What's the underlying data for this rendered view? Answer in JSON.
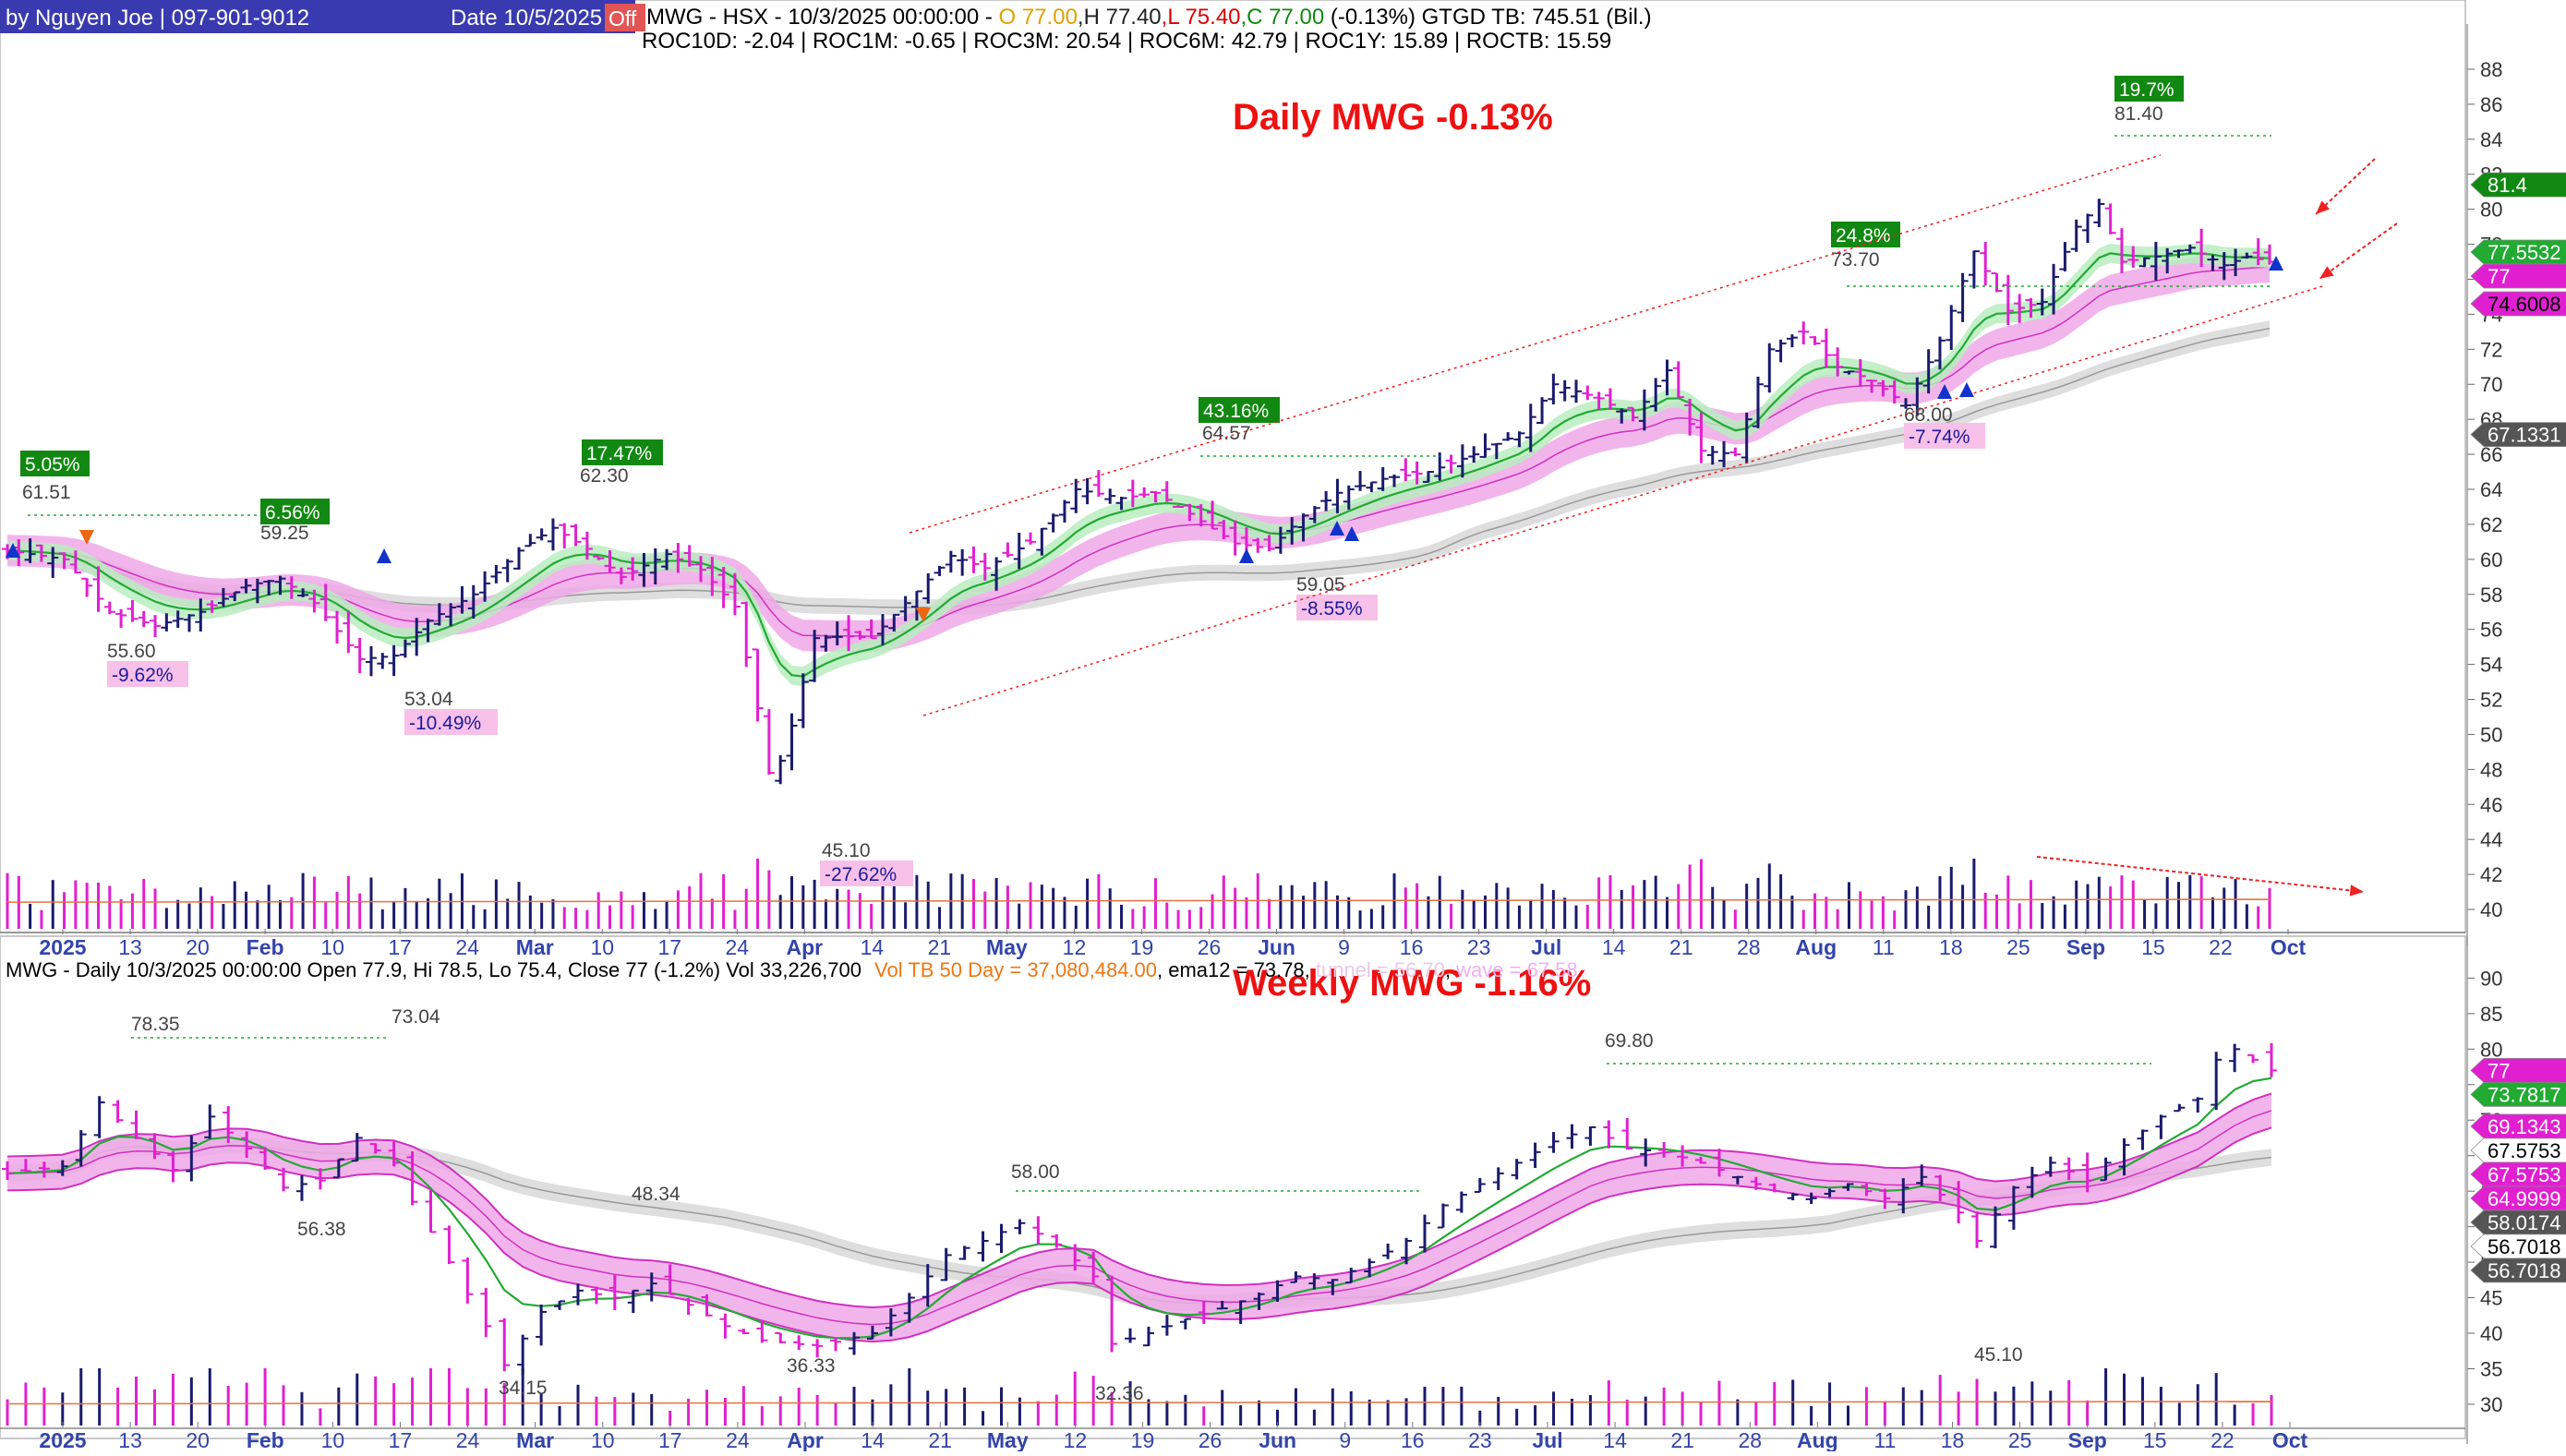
{
  "colors": {
    "up": "#1a1a6e",
    "down": "#e020d0",
    "ema_green": "#22aa33",
    "ema_green_band": "#b8ecc0",
    "magenta_band": "#f0a8e8",
    "magenta_line": "#d030c0",
    "gray_band": "#d8d8d8",
    "title_red": "#ee1111",
    "pct_green_bg": "#118811",
    "pct_neg_bg": "#f7c0e8"
  },
  "header": {
    "author": "by Nguyen Joe | 097-901-9012",
    "date": "Date 10/5/2025",
    "off_badge": "Off",
    "quote_line": {
      "symbol": "MWG - HSX -  10/3/2025 00:00:00  -  ",
      "o": "O 77.00",
      "h": ",H 77.40",
      "l": ",L 75.40",
      "c": ",C 77.00",
      "rest": " (-0.13%)  GTGD TB: 745.51 (Bil.)"
    },
    "roc_line": "ROC10D:  -2.04 | ROC1M:  -0.65 |  ROC3M:  20.54 | ROC6M:  42.79 | ROC1Y:  15.89 | ROCTB:  15.59"
  },
  "chart_data": [
    {
      "type": "ohlc-bar",
      "title": "Daily  MWG -0.13%",
      "ylim": [
        39,
        89
      ],
      "yticks": [
        40,
        42,
        44,
        46,
        48,
        50,
        52,
        54,
        56,
        58,
        60,
        62,
        64,
        66,
        68,
        70,
        72,
        74,
        76,
        78,
        80,
        82,
        84,
        86,
        88
      ],
      "x_tick_labels": [
        "2025",
        "13",
        "20",
        "Feb",
        "10",
        "17",
        "24",
        "Mar",
        "10",
        "17",
        "24",
        "Apr",
        "14",
        "21",
        "May",
        "12",
        "19",
        "26",
        "Jun",
        "9",
        "16",
        "23",
        "Jul",
        "14",
        "21",
        "28",
        "Aug",
        "11",
        "18",
        "25",
        "Sep",
        "15",
        "22",
        "Oct"
      ],
      "anchor_points": [
        {
          "d": 0,
          "c": 60.5
        },
        {
          "d": 5,
          "c": 60.0
        },
        {
          "d": 9,
          "c": 57.0
        },
        {
          "d": 13,
          "c": 56.2
        },
        {
          "d": 17,
          "c": 57.0
        },
        {
          "d": 21,
          "c": 58.5
        },
        {
          "d": 24,
          "c": 58.9
        },
        {
          "d": 27,
          "c": 57.5
        },
        {
          "d": 31,
          "c": 54.3
        },
        {
          "d": 34,
          "c": 54.5
        },
        {
          "d": 37,
          "c": 56.5
        },
        {
          "d": 41,
          "c": 58.0
        },
        {
          "d": 45,
          "c": 60.5
        },
        {
          "d": 48,
          "c": 61.8
        },
        {
          "d": 51,
          "c": 60.6
        },
        {
          "d": 54,
          "c": 59.0
        },
        {
          "d": 58,
          "c": 60.3
        },
        {
          "d": 61,
          "c": 59.4
        },
        {
          "d": 64,
          "c": 57.3
        },
        {
          "d": 66,
          "c": 51.5
        },
        {
          "d": 67,
          "c": 47.8
        },
        {
          "d": 68,
          "c": 48.5
        },
        {
          "d": 69,
          "c": 50.5
        },
        {
          "d": 71,
          "c": 55.5
        },
        {
          "d": 74,
          "c": 55.6
        },
        {
          "d": 76,
          "c": 55.5
        },
        {
          "d": 79,
          "c": 57.5
        },
        {
          "d": 83,
          "c": 60.2
        },
        {
          "d": 86,
          "c": 59.5
        },
        {
          "d": 90,
          "c": 61.0
        },
        {
          "d": 94,
          "c": 64.0
        },
        {
          "d": 98,
          "c": 63.5
        },
        {
          "d": 101,
          "c": 63.8
        },
        {
          "d": 104,
          "c": 62.6
        },
        {
          "d": 108,
          "c": 60.9
        },
        {
          "d": 111,
          "c": 60.6
        },
        {
          "d": 114,
          "c": 62.5
        },
        {
          "d": 117,
          "c": 63.8
        },
        {
          "d": 121,
          "c": 64.6
        },
        {
          "d": 125,
          "c": 65.0
        },
        {
          "d": 129,
          "c": 66.0
        },
        {
          "d": 133,
          "c": 67.2
        },
        {
          "d": 136,
          "c": 70.0
        },
        {
          "d": 140,
          "c": 69.2
        },
        {
          "d": 143,
          "c": 68.1
        },
        {
          "d": 146,
          "c": 70.8
        },
        {
          "d": 149,
          "c": 66.2
        },
        {
          "d": 152,
          "c": 66.0
        },
        {
          "d": 155,
          "c": 72.0
        },
        {
          "d": 158,
          "c": 73.0
        },
        {
          "d": 161,
          "c": 71.0
        },
        {
          "d": 164,
          "c": 70.2
        },
        {
          "d": 167,
          "c": 68.8
        },
        {
          "d": 170,
          "c": 72.5
        },
        {
          "d": 173,
          "c": 77.6
        },
        {
          "d": 176,
          "c": 74.2
        },
        {
          "d": 179,
          "c": 74.7
        },
        {
          "d": 182,
          "c": 79.0
        },
        {
          "d": 184,
          "c": 80.3
        },
        {
          "d": 186,
          "c": 77.0
        },
        {
          "d": 189,
          "c": 77.3
        },
        {
          "d": 192,
          "c": 77.8
        },
        {
          "d": 195,
          "c": 76.8
        },
        {
          "d": 197,
          "c": 77.3
        },
        {
          "d": 199,
          "c": 77.0
        }
      ],
      "volume": {
        "avg_line": "Vol TB 50 Day = 37,080,484.00"
      },
      "annotations": {
        "pct_up": [
          "5.05%",
          "6.56%",
          "17.47%",
          "43.16%",
          "24.8%",
          "19.7%"
        ],
        "pct_down": [
          "-9.62%",
          "-10.49%",
          "-27.62%",
          "-8.55%",
          "-7.74%"
        ],
        "levels": [
          "61.51",
          "59.25",
          "55.60",
          "53.04",
          "62.30",
          "45.10",
          "64.57",
          "59.05",
          "73.70",
          "68.00",
          "81.40"
        ]
      },
      "price_tags": [
        {
          "label": "81.4",
          "value": 81.4,
          "bg": "#118811",
          "fg": "#ffffff"
        },
        {
          "label": "77.5532",
          "value": 77.5532,
          "bg": "#22aa33",
          "fg": "#ffffff"
        },
        {
          "label": "77",
          "value": 77.0,
          "bg": "#e020d0",
          "fg": "#ffffff"
        },
        {
          "label": "74.6008",
          "value": 74.6008,
          "bg": "#e020d0",
          "fg": "#000000"
        },
        {
          "label": "67.1331",
          "value": 67.1331,
          "bg": "#555555",
          "fg": "#ffffff"
        }
      ]
    },
    {
      "type": "ohlc-bar",
      "title": "Weekly  MWG -1.16%",
      "info_line": {
        "main": "MWG - Daily 10/3/2025 00:00:00 Open 77.9, Hi 78.5, Lo 75.4, Close 77 (-1.2%) Vol 33,226,700",
        "vol": "Vol TB 50 Day = 37,080,484.00",
        "rest": ", ema12 = 73.78, ",
        "tunnel": "tunnel = 56.70",
        "wave": "wave = 67.58"
      },
      "ylim": [
        27,
        92
      ],
      "yticks": [
        30,
        35,
        40,
        45,
        50,
        55,
        60,
        65,
        70,
        75,
        80,
        85,
        90
      ],
      "x_tick_labels": [
        "2025",
        "13",
        "20",
        "Feb",
        "10",
        "17",
        "24",
        "Mar",
        "10",
        "17",
        "24",
        "Apr",
        "14",
        "21",
        "May",
        "12",
        "19",
        "26",
        "Jun",
        "9",
        "16",
        "23",
        "Jul",
        "14",
        "21",
        "28",
        "Aug",
        "11",
        "18",
        "25",
        "Sep",
        "15",
        "22",
        "Oct"
      ],
      "anchor_points": [
        {
          "w": 0,
          "c": 62.5
        },
        {
          "w": 3,
          "c": 63.5
        },
        {
          "w": 5,
          "c": 72.5
        },
        {
          "w": 7,
          "c": 67.5
        },
        {
          "w": 9,
          "c": 63.0
        },
        {
          "w": 11,
          "c": 70.5
        },
        {
          "w": 13,
          "c": 66.0
        },
        {
          "w": 15,
          "c": 60.5
        },
        {
          "w": 17,
          "c": 61.5
        },
        {
          "w": 19,
          "c": 67.5
        },
        {
          "w": 21,
          "c": 64.0
        },
        {
          "w": 22,
          "c": 58.5
        },
        {
          "w": 24,
          "c": 50.0
        },
        {
          "w": 26,
          "c": 41.0
        },
        {
          "w": 27,
          "c": 35.5
        },
        {
          "w": 29,
          "c": 43.0
        },
        {
          "w": 31,
          "c": 46.0
        },
        {
          "w": 33,
          "c": 45.0
        },
        {
          "w": 35,
          "c": 47.0
        },
        {
          "w": 37,
          "c": 44.0
        },
        {
          "w": 39,
          "c": 41.0
        },
        {
          "w": 41,
          "c": 39.0
        },
        {
          "w": 44,
          "c": 38.2
        },
        {
          "w": 47,
          "c": 40.0
        },
        {
          "w": 49,
          "c": 45.0
        },
        {
          "w": 51,
          "c": 51.0
        },
        {
          "w": 53,
          "c": 53.0
        },
        {
          "w": 55,
          "c": 55.5
        },
        {
          "w": 57,
          "c": 52.5
        },
        {
          "w": 59,
          "c": 48.0
        },
        {
          "w": 60,
          "c": 38.5
        },
        {
          "w": 62,
          "c": 40.0
        },
        {
          "w": 64,
          "c": 42.0
        },
        {
          "w": 66,
          "c": 43.5
        },
        {
          "w": 68,
          "c": 45.5
        },
        {
          "w": 70,
          "c": 48.0
        },
        {
          "w": 72,
          "c": 47.5
        },
        {
          "w": 74,
          "c": 50.0
        },
        {
          "w": 76,
          "c": 53.0
        },
        {
          "w": 78,
          "c": 58.0
        },
        {
          "w": 80,
          "c": 61.0
        },
        {
          "w": 82,
          "c": 64.0
        },
        {
          "w": 84,
          "c": 67.0
        },
        {
          "w": 86,
          "c": 69.0
        },
        {
          "w": 88,
          "c": 66.0
        },
        {
          "w": 90,
          "c": 65.5
        },
        {
          "w": 92,
          "c": 64.0
        },
        {
          "w": 94,
          "c": 62.0
        },
        {
          "w": 96,
          "c": 60.0
        },
        {
          "w": 98,
          "c": 59.0
        },
        {
          "w": 100,
          "c": 61.0
        },
        {
          "w": 102,
          "c": 59.0
        },
        {
          "w": 104,
          "c": 62.0
        },
        {
          "w": 106,
          "c": 57.0
        },
        {
          "w": 107,
          "c": 53.0
        },
        {
          "w": 109,
          "c": 60.5
        },
        {
          "w": 111,
          "c": 64.0
        },
        {
          "w": 113,
          "c": 61.5
        },
        {
          "w": 115,
          "c": 66.5
        },
        {
          "w": 117,
          "c": 70.5
        },
        {
          "w": 119,
          "c": 73.0
        },
        {
          "w": 120,
          "c": 78.5
        },
        {
          "w": 121,
          "c": 80.0
        },
        {
          "w": 122,
          "c": 78.5
        },
        {
          "w": 123,
          "c": 77.0
        }
      ],
      "annotations": {
        "levels": [
          "78.35",
          "73.04",
          "56.38",
          "48.34",
          "34.15",
          "36.33",
          "58.00",
          "32.36",
          "69.80",
          "45.10"
        ]
      },
      "price_tags": [
        {
          "label": "77",
          "value": 77.0,
          "bg": "#e020d0",
          "fg": "#ffffff"
        },
        {
          "label": "73.7817",
          "value": 73.7817,
          "bg": "#22aa33",
          "fg": "#ffffff"
        },
        {
          "label": "69.1343",
          "value": 69.1343,
          "bg": "#e020d0",
          "fg": "#ffffff"
        },
        {
          "label": "67.5753",
          "value": 67.5753,
          "bg": "#ffffff",
          "fg": "#000000"
        },
        {
          "label": "67.5753",
          "value": 67.5753,
          "bg": "#e020d0",
          "fg": "#ffffff"
        },
        {
          "label": "64.9999",
          "value": 64.9999,
          "bg": "#e020d0",
          "fg": "#ffffff"
        },
        {
          "label": "58.0174",
          "value": 58.0174,
          "bg": "#555555",
          "fg": "#ffffff"
        },
        {
          "label": "56.7018",
          "value": 56.7018,
          "bg": "#ffffff",
          "fg": "#000000"
        },
        {
          "label": "56.7018",
          "value": 56.7018,
          "bg": "#555555",
          "fg": "#ffffff"
        }
      ]
    }
  ]
}
